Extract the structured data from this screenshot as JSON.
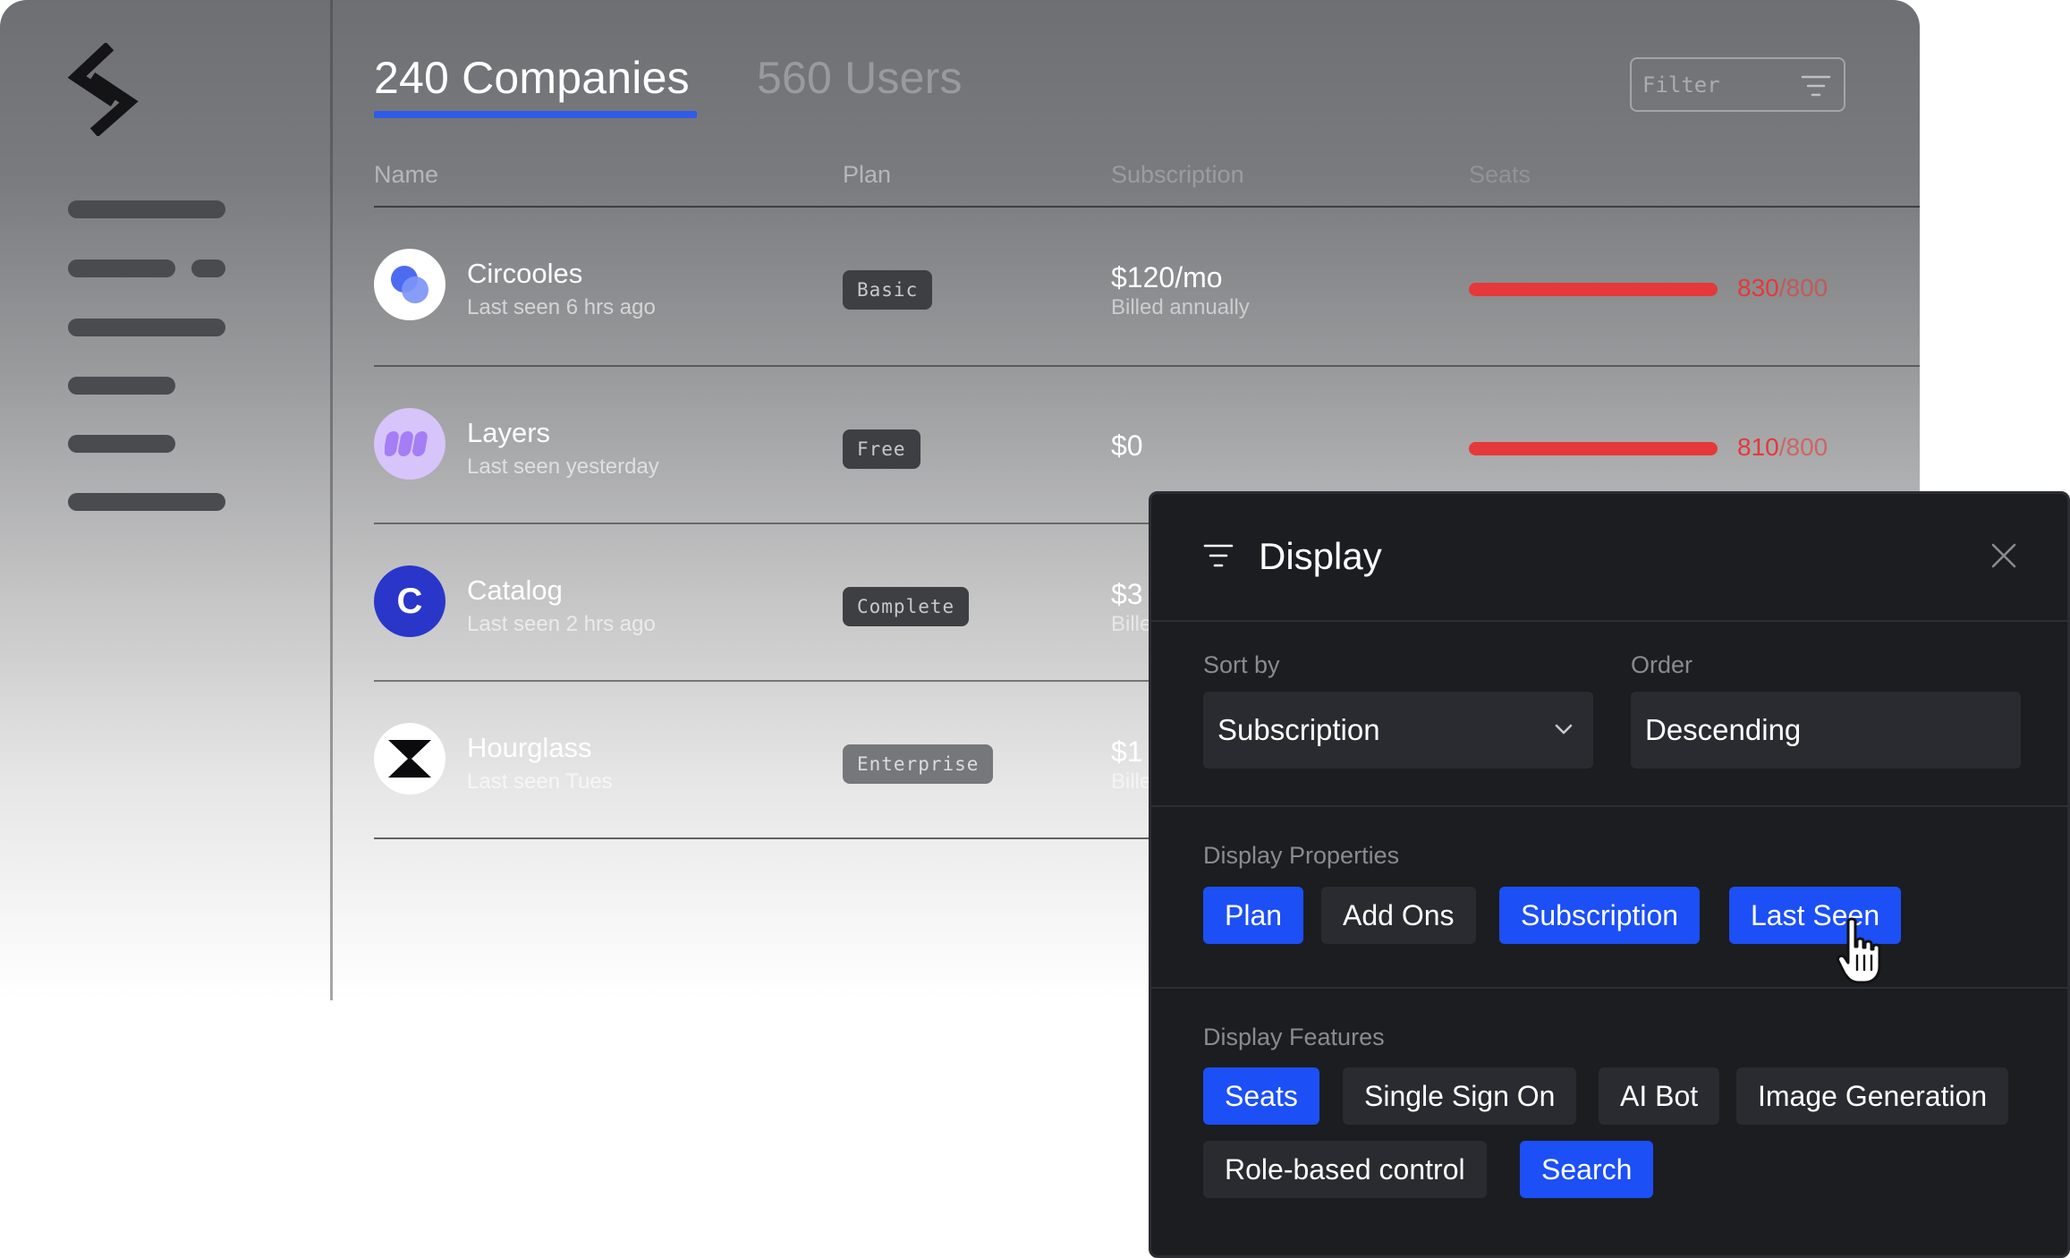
{
  "tabs": [
    {
      "label": "240 Companies",
      "active": true
    },
    {
      "label": "560 Users",
      "active": false
    }
  ],
  "filter": {
    "placeholder": "Filter",
    "icon": "filter-lines-icon"
  },
  "columns": [
    "Name",
    "Plan",
    "Subscription",
    "Seats"
  ],
  "companies": [
    {
      "name": "Circooles",
      "last_seen": "Last seen 6 hrs ago",
      "plan": "Basic",
      "price": "$120/mo",
      "billing": "Billed annually",
      "seats_used": "830",
      "seats_limit": "/800",
      "avatar_icon": "circooles-logo-icon"
    },
    {
      "name": "Layers",
      "last_seen": "Last seen yesterday",
      "plan": "Free",
      "price": "$0",
      "billing": "",
      "seats_used": "810",
      "seats_limit": "/800",
      "avatar_icon": "layers-logo-icon"
    },
    {
      "name": "Catalog",
      "last_seen": "Last seen 2 hrs ago",
      "plan": "Complete",
      "price": "$3",
      "billing": "Bille",
      "seats_used": "",
      "seats_limit": "",
      "avatar_icon": "catalog-logo-icon",
      "avatar_letter": "C"
    },
    {
      "name": "Hourglass",
      "last_seen": "Last seen Tues",
      "plan": "Enterprise",
      "price": "$1",
      "billing": "Bille",
      "seats_used": "",
      "seats_limit": "",
      "avatar_icon": "hourglass-logo-icon"
    }
  ],
  "display_panel": {
    "title": "Display",
    "sort_by": {
      "label": "Sort by",
      "value": "Subscription"
    },
    "order": {
      "label": "Order",
      "value": "Descending"
    },
    "properties": {
      "label": "Display Properties",
      "chips": [
        {
          "label": "Plan",
          "selected": true
        },
        {
          "label": "Add Ons",
          "selected": false
        },
        {
          "label": "Subscription",
          "selected": true
        },
        {
          "label": "Last Seen",
          "selected": true
        }
      ]
    },
    "features": {
      "label": "Display Features",
      "chips": [
        {
          "label": "Seats",
          "selected": true
        },
        {
          "label": "Single Sign On",
          "selected": false
        },
        {
          "label": "AI Bot",
          "selected": false
        },
        {
          "label": "Image Generation",
          "selected": false
        },
        {
          "label": "Role-based control",
          "selected": false
        },
        {
          "label": "Search",
          "selected": true
        }
      ]
    }
  },
  "colors": {
    "accent": "#1c4ff5",
    "tab_underline": "#2f5bea",
    "over_limit": "#e5383b",
    "panel_bg": "#1c1d21"
  }
}
